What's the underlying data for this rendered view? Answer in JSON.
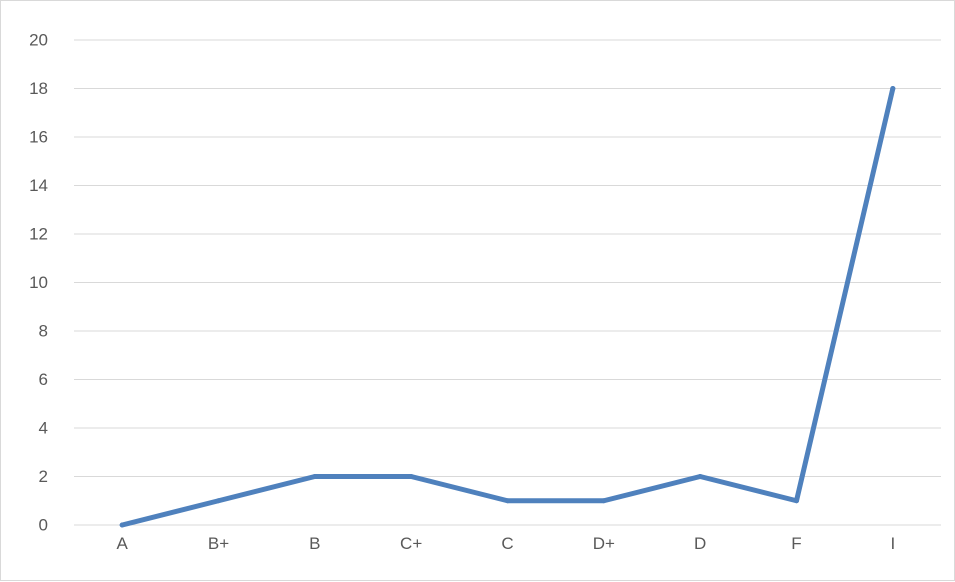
{
  "chart_data": {
    "type": "line",
    "categories": [
      "A",
      "B+",
      "B",
      "C+",
      "C",
      "D+",
      "D",
      "F",
      "I"
    ],
    "series": [
      {
        "values": [
          0,
          1,
          2,
          2,
          1,
          1,
          2,
          1,
          18
        ],
        "color": "#4f81bd"
      }
    ],
    "title": "",
    "xlabel": "",
    "ylabel": "",
    "ylim": [
      0,
      20
    ],
    "yticks": [
      0,
      2,
      4,
      6,
      8,
      10,
      12,
      14,
      16,
      18,
      20
    ],
    "grid": true,
    "gridline_color": "#d9d9d9",
    "legend": "none"
  }
}
